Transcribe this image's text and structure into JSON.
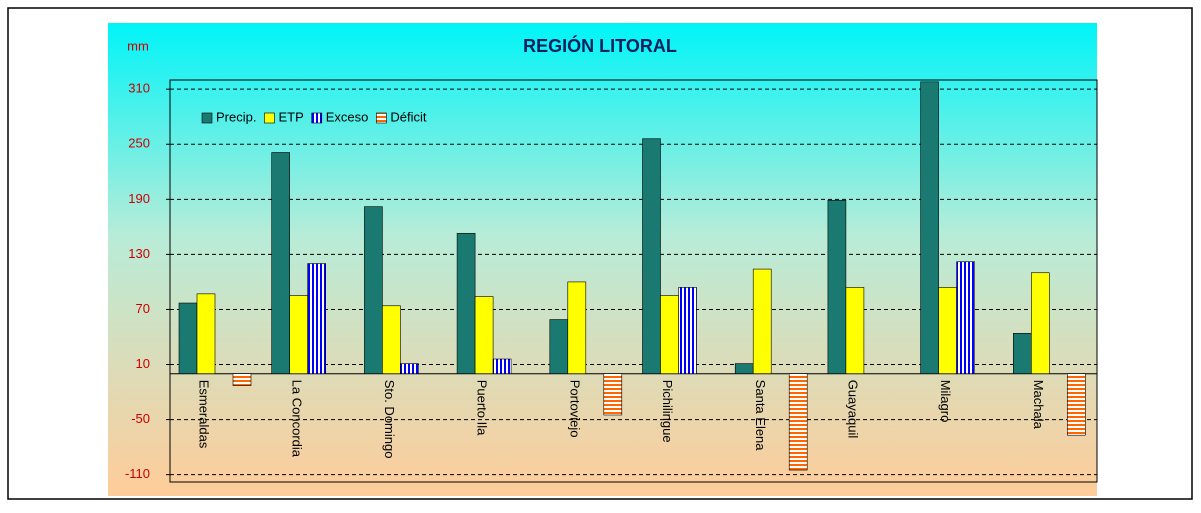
{
  "chart_data": {
    "type": "bar",
    "title": "REGIÓN LITORAL",
    "y_label": "mm",
    "categories": [
      "Esmeraldas",
      "La Concordia",
      "Sto. Domingo",
      "Puerto Ila",
      "Portoviejo",
      "Pichilingue",
      "Santa Elena",
      "Guayaquil",
      "Milagro",
      "Machala"
    ],
    "series": [
      {
        "name": "Precip.",
        "color": "#1a7a72",
        "values": [
          77,
          241,
          182,
          153,
          59,
          256,
          11,
          189,
          318,
          44
        ]
      },
      {
        "name": "ETP",
        "color": "#ffff00",
        "values": [
          87,
          85,
          74,
          84,
          100,
          85,
          114,
          94,
          94,
          110
        ]
      },
      {
        "name": "Exceso",
        "color": "#0000ff",
        "hatch": "vertical",
        "values": [
          0,
          120,
          11,
          16,
          0,
          94,
          0,
          0,
          122,
          0
        ]
      },
      {
        "name": "Déficit",
        "color": "#ff6600",
        "hatch": "horizontal",
        "values": [
          -13,
          0,
          0,
          0,
          -45,
          0,
          -105,
          0,
          0,
          -67
        ]
      }
    ],
    "ylim": [
      -118,
      320
    ],
    "yticks": [
      -110,
      -50,
      10,
      70,
      130,
      190,
      250,
      310
    ],
    "grid": true,
    "legend": "top-left"
  }
}
